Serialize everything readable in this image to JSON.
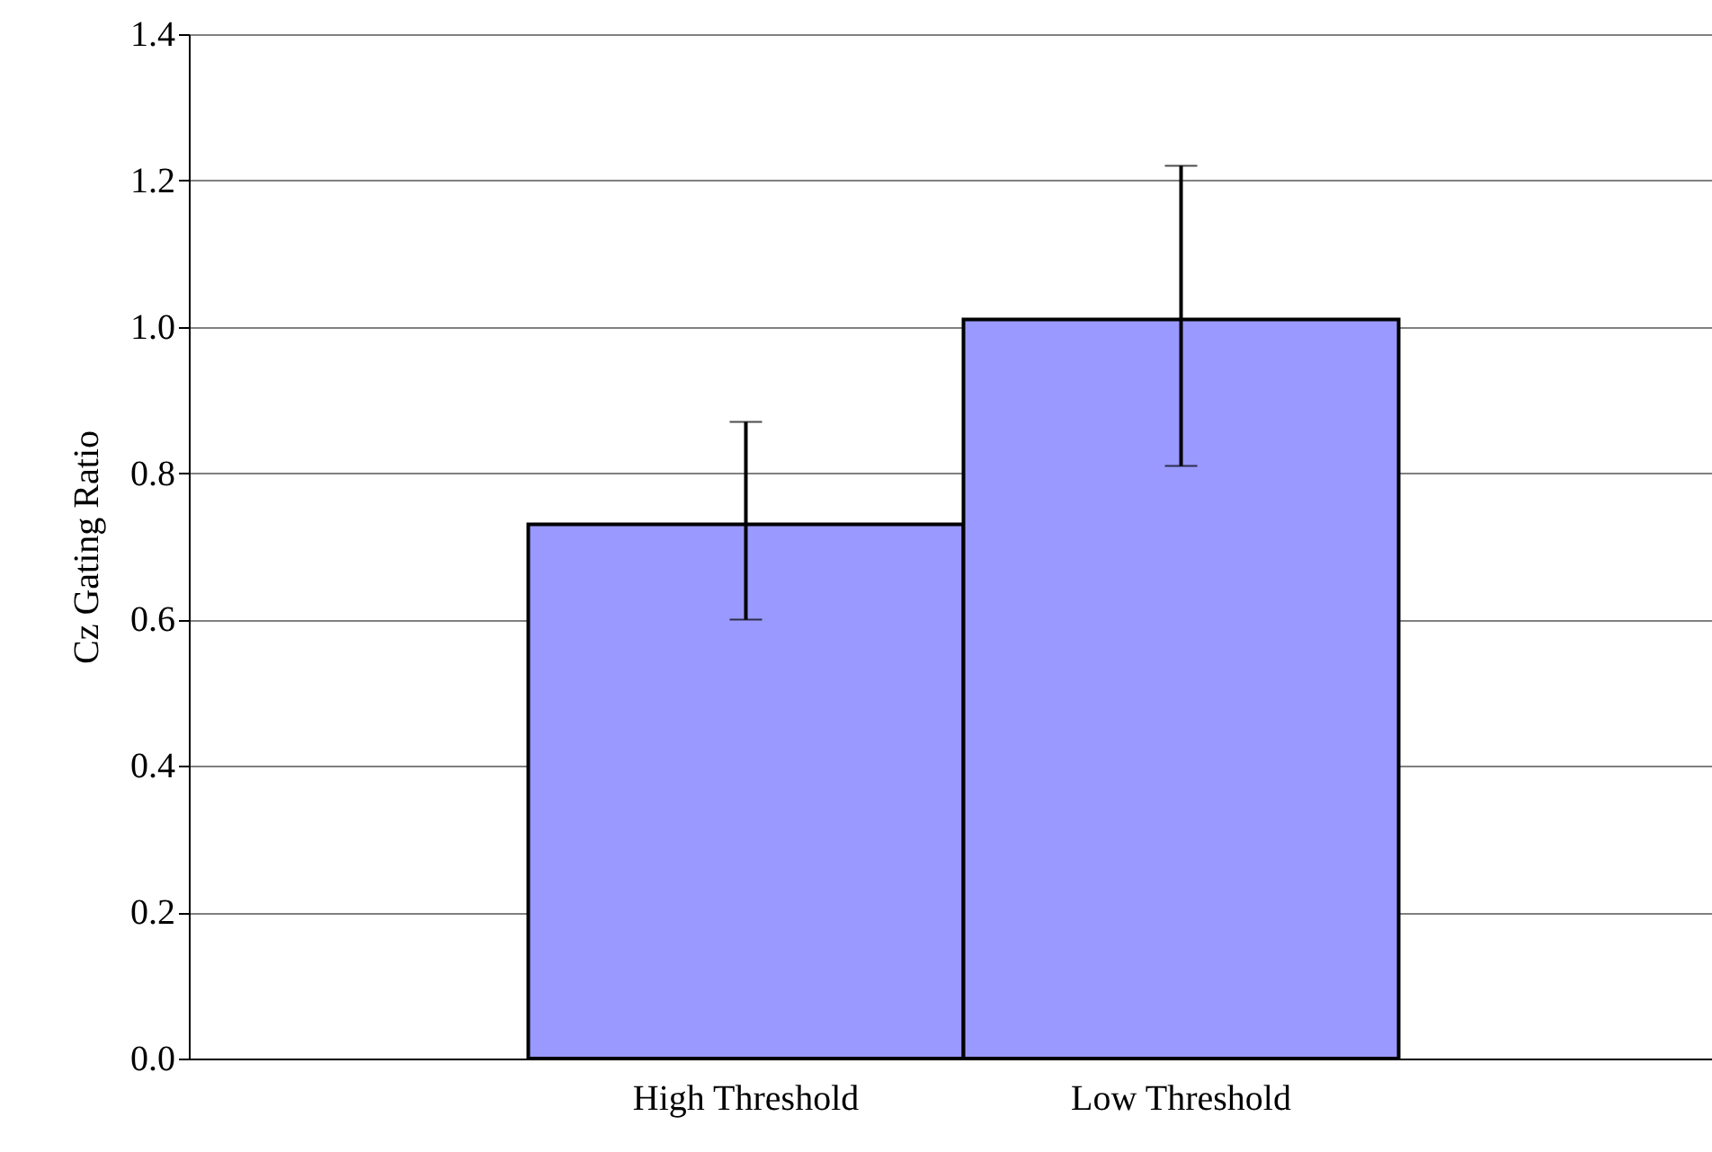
{
  "chart_data": {
    "type": "bar",
    "ylabel": "Cz Gating Ratio",
    "categories": [
      "High Threshold",
      "Low Threshold"
    ],
    "values": [
      0.73,
      1.01
    ],
    "color": "#9999ff",
    "errors": [
      [
        0.6,
        0.87
      ],
      [
        0.81,
        1.22
      ]
    ],
    "ylim": [
      0,
      1.4
    ],
    "yticks": [
      {
        "value": 0,
        "label": "0.0"
      },
      {
        "value": 0.2,
        "label": "0.2"
      },
      {
        "value": 0.4,
        "label": "0.4"
      },
      {
        "value": 0.6,
        "label": "0.6"
      },
      {
        "value": 0.8,
        "label": "0.8"
      },
      {
        "value": 1.0,
        "label": "1.0"
      },
      {
        "value": 1.2,
        "label": "1.2"
      },
      {
        "value": 1.4,
        "label": "1.4"
      }
    ],
    "grid": "y"
  }
}
